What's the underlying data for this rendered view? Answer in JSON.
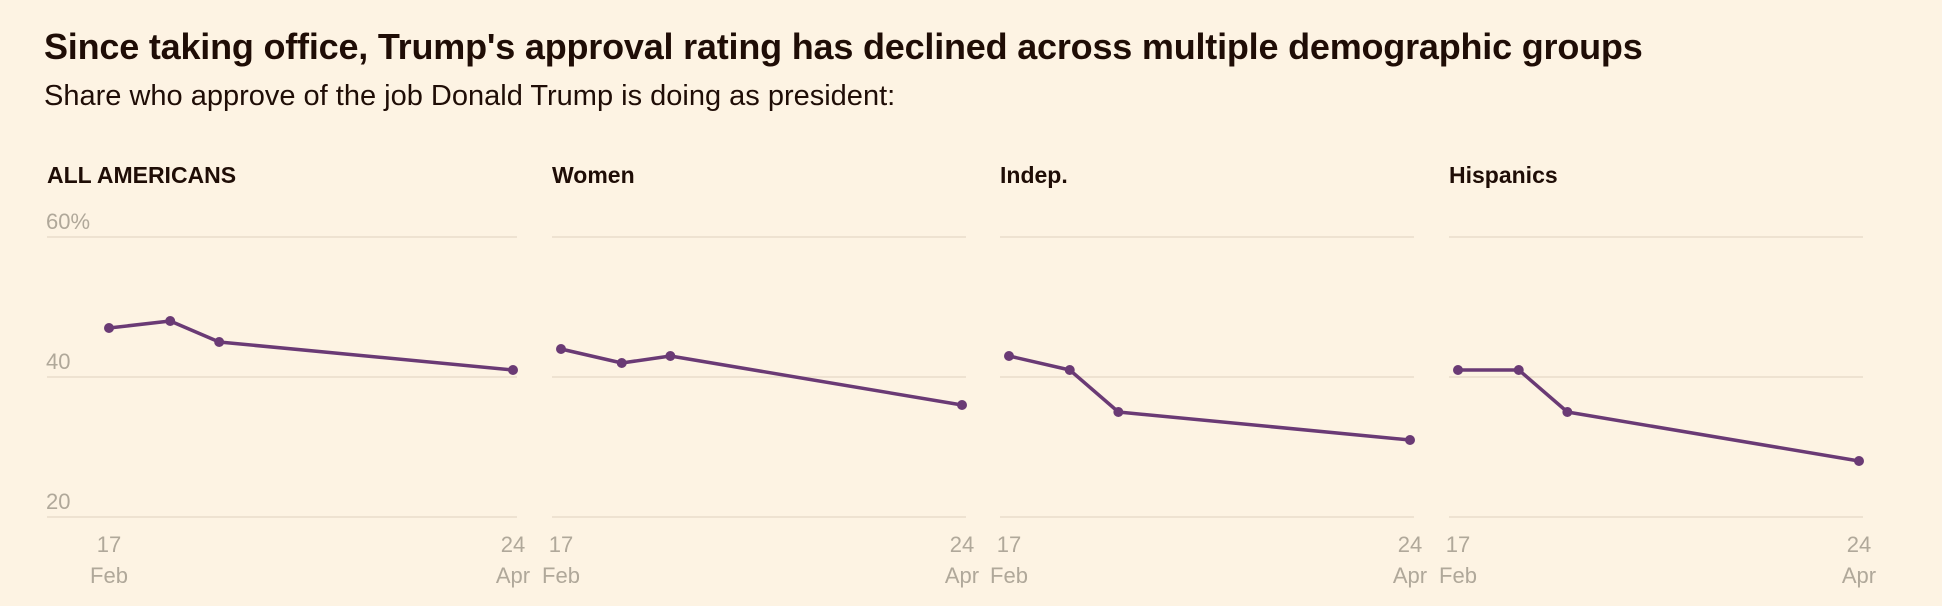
{
  "title": "Since taking office, Trump's approval rating has declined across multiple demographic groups",
  "subtitle": "Share who approve of the job Donald Trump is doing as president:",
  "colors": {
    "background": "#fdf3e3",
    "line": "#6a3a75",
    "text": "#1f0d06",
    "tick": "#b0a89a",
    "grid": "#e9ddcb"
  },
  "chart_data": [
    {
      "type": "line",
      "title": "ALL AMERICANS",
      "y_tick_labels": [
        "60%",
        "40",
        "20"
      ],
      "ylim": [
        20,
        60
      ],
      "x_tick_labels": [
        {
          "day": "17",
          "month": "Feb"
        },
        {
          "day": "24",
          "month": "Apr"
        }
      ],
      "points": [
        {
          "x": "2025-02-17",
          "y": 47
        },
        {
          "x": "2025-02-27",
          "y": 48
        },
        {
          "x": "2025-03-07",
          "y": 45
        },
        {
          "x": "2025-04-24",
          "y": 41
        }
      ]
    },
    {
      "type": "line",
      "title": "Women",
      "ylim": [
        20,
        60
      ],
      "x_tick_labels": [
        {
          "day": "17",
          "month": "Feb"
        },
        {
          "day": "24",
          "month": "Apr"
        }
      ],
      "points": [
        {
          "x": "2025-02-17",
          "y": 44
        },
        {
          "x": "2025-02-27",
          "y": 42
        },
        {
          "x": "2025-03-07",
          "y": 43
        },
        {
          "x": "2025-04-24",
          "y": 36
        }
      ]
    },
    {
      "type": "line",
      "title": "Indep.",
      "ylim": [
        20,
        60
      ],
      "x_tick_labels": [
        {
          "day": "17",
          "month": "Feb"
        },
        {
          "day": "24",
          "month": "Apr"
        }
      ],
      "points": [
        {
          "x": "2025-02-17",
          "y": 43
        },
        {
          "x": "2025-02-27",
          "y": 41
        },
        {
          "x": "2025-03-07",
          "y": 35
        },
        {
          "x": "2025-04-24",
          "y": 31
        }
      ]
    },
    {
      "type": "line",
      "title": "Hispanics",
      "ylim": [
        20,
        60
      ],
      "x_tick_labels": [
        {
          "day": "17",
          "month": "Feb"
        },
        {
          "day": "24",
          "month": "Apr"
        }
      ],
      "points": [
        {
          "x": "2025-02-17",
          "y": 41
        },
        {
          "x": "2025-02-27",
          "y": 41
        },
        {
          "x": "2025-03-07",
          "y": 35
        },
        {
          "x": "2025-04-24",
          "y": 28
        }
      ]
    }
  ]
}
